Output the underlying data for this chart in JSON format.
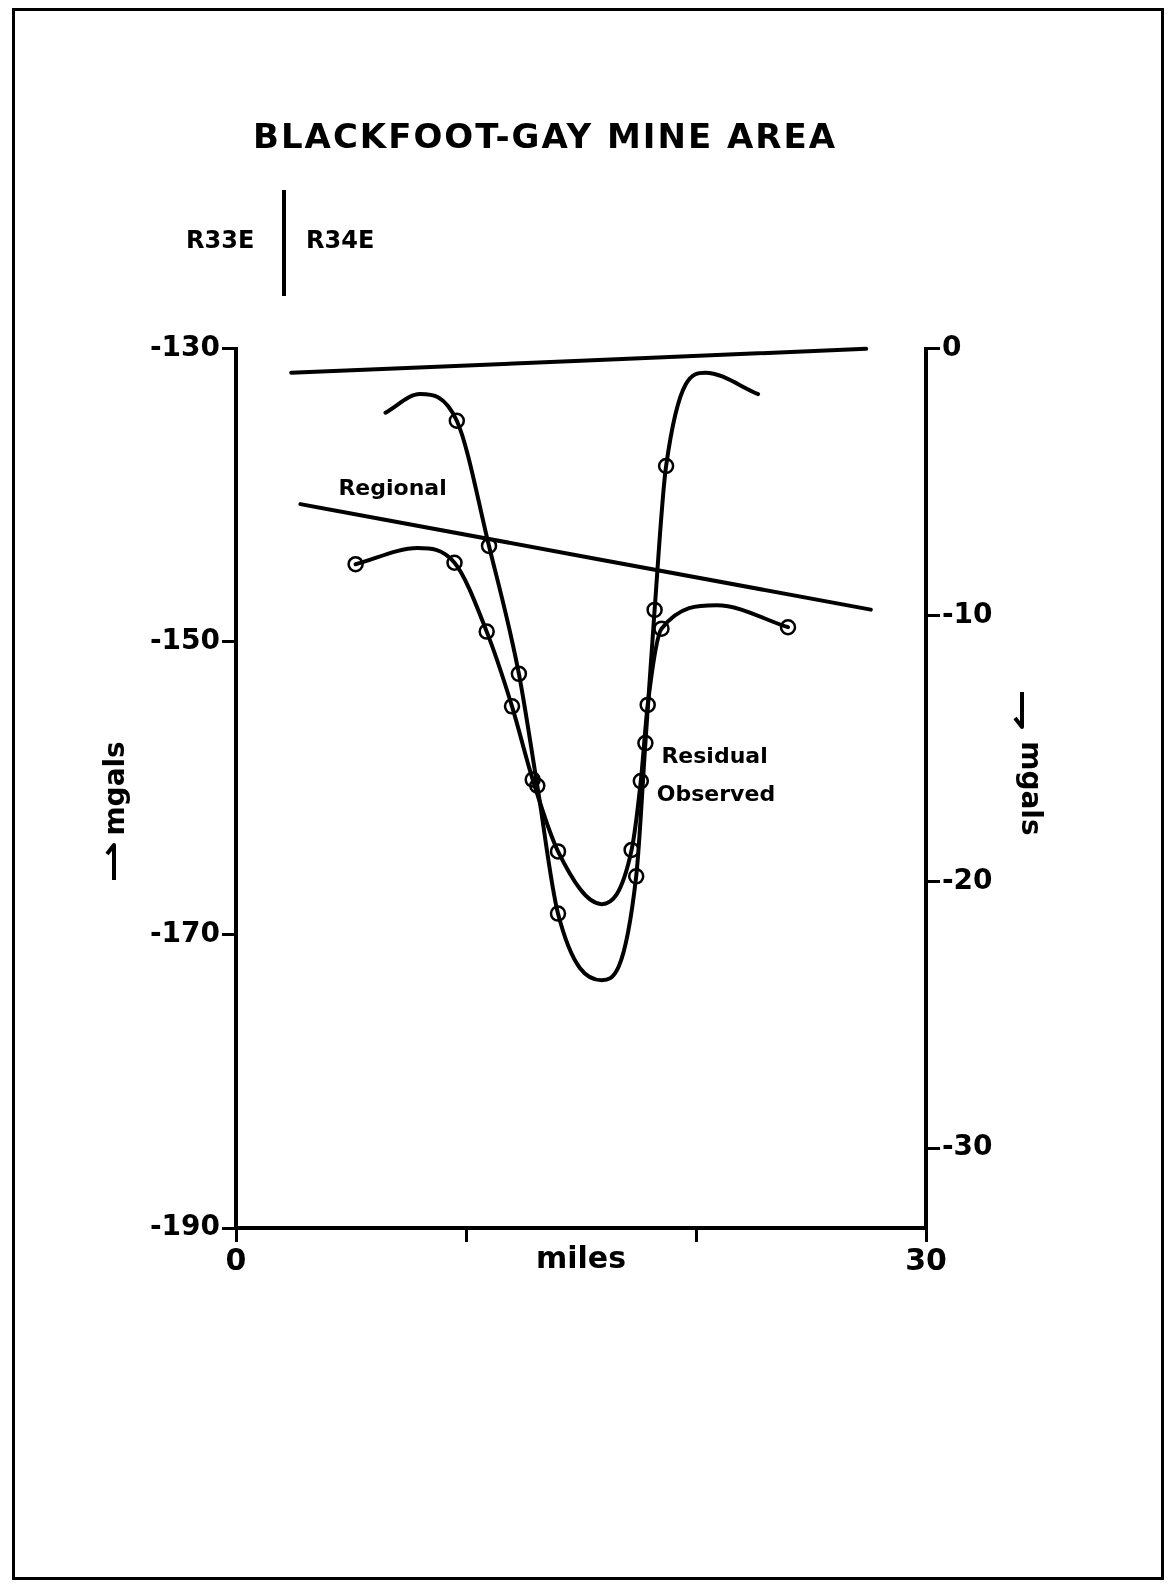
{
  "chart_data": {
    "type": "line",
    "title": "BLACKFOOT-GAY MINE AREA",
    "annotations": [
      "R33E",
      "R34E"
    ],
    "xlabel": "miles",
    "ylabel": "mgals",
    "y2label": "mgals",
    "xlim": [
      0,
      30
    ],
    "xticks": [
      0,
      {
        "value": 10,
        "label": null
      },
      {
        "value": 20,
        "label": null
      },
      30
    ],
    "ylim": [
      -190,
      -130
    ],
    "yticks": [
      -190,
      -170,
      -150,
      -130
    ],
    "y2lim": [
      -33,
      0
    ],
    "y2ticks": [
      -30,
      -20,
      -10,
      0
    ],
    "grid": false,
    "legend": false,
    "series": [
      {
        "name": "Regional",
        "type": "line",
        "marker": "none",
        "color": "#000000",
        "x": [
          2.8,
          27.6
        ],
        "values": [
          -140.6,
          -147.8
        ]
      },
      {
        "name": "Observed",
        "type": "line",
        "marker": "none",
        "color": "#000000",
        "x": [
          5.2,
          7.9,
          9.5,
          10.9,
          12.0,
          12.9,
          14.0,
          15.9,
          17.2,
          17.6,
          17.9,
          18.5,
          20.9,
          24.0
        ],
        "values": [
          -144.7,
          -143.6,
          -144.6,
          -149.3,
          -154.4,
          -159.4,
          -164.3,
          -167.9,
          -164.2,
          -159.5,
          -154.3,
          -149.1,
          -147.5,
          -149.0
        ]
      },
      {
        "type": "scatter",
        "marker": "circle",
        "color": "#000000",
        "x": [
          5.2,
          9.5,
          10.9,
          12.0,
          12.9,
          14.0,
          17.2,
          17.6,
          17.9,
          18.5,
          24.0
        ],
        "values": [
          -144.7,
          -144.6,
          -149.3,
          -154.4,
          -159.4,
          -164.3,
          -164.2,
          -159.5,
          -154.3,
          -149.1,
          -149.0
        ]
      },
      {
        "type": "line",
        "axis": "y2",
        "marker": "none",
        "color": "#000000",
        "x": [
          2.4,
          27.4
        ],
        "values": [
          -0.9,
          0
        ]
      },
      {
        "name": "Residual",
        "type": "line",
        "axis": "y2",
        "marker": "none",
        "color": "#000000",
        "x": [
          6.5,
          8.0,
          9.6,
          11.0,
          12.3,
          13.1,
          14.0,
          15.9,
          17.4,
          17.8,
          18.2,
          18.7,
          20.4,
          22.7
        ],
        "values": [
          -2.4,
          -1.7,
          -2.7,
          -7.4,
          -12.2,
          -16.4,
          -21.2,
          -23.7,
          -19.8,
          -14.8,
          -9.8,
          -4.4,
          -0.9,
          -1.7
        ]
      },
      {
        "type": "scatter",
        "axis": "y2",
        "marker": "circle",
        "color": "#000000",
        "x": [
          9.6,
          11.0,
          12.3,
          13.1,
          14.0,
          17.4,
          17.8,
          18.2,
          18.7
        ],
        "values": [
          -2.7,
          -7.4,
          -12.2,
          -16.4,
          -21.2,
          -19.8,
          -14.8,
          -9.8,
          -4.4
        ]
      }
    ]
  }
}
